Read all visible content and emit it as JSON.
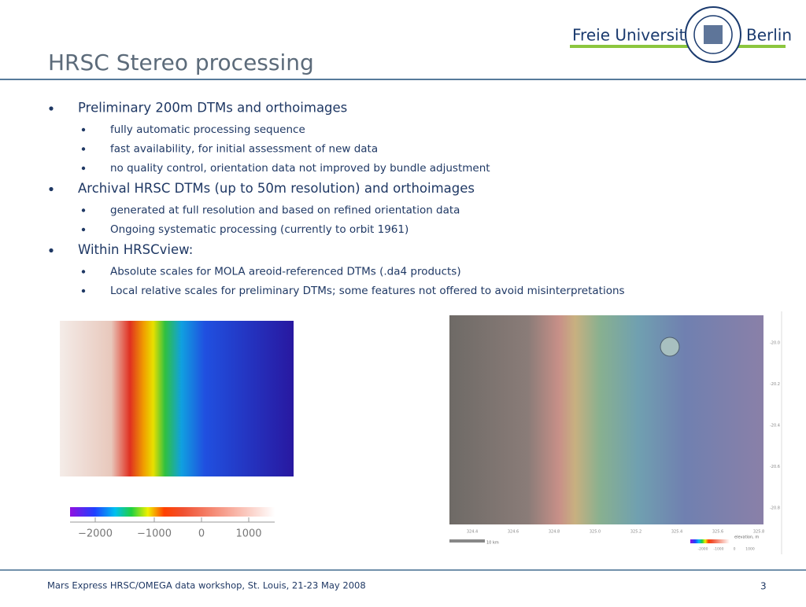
{
  "header": {
    "logo_name": "Freie Universität",
    "logo_city": "Berlin",
    "title": "HRSC Stereo processing"
  },
  "bullets": [
    {
      "text": "Preliminary 200m DTMs and orthoimages",
      "sub": [
        "fully automatic processing sequence",
        "fast availability, for initial assessment of new data",
        "no quality control, orientation data not improved by bundle adjustment"
      ]
    },
    {
      "text": "Archival HRSC DTMs (up to 50m resolution) and orthoimages",
      "sub": [
        "generated at full resolution and based on refined orientation data",
        "Ongoing systematic processing (currently to orbit 1961)"
      ]
    },
    {
      "text": "Within HRSCview:",
      "sub": [
        "Absolute scales for MOLA areoid-referenced DTMs (.da4 products)",
        "Local relative scales for preliminary DTMs; some features not offered to avoid misinterpretations"
      ]
    }
  ],
  "left_figure": {
    "colorbar_labels": [
      "−2000",
      "−1000",
      "0",
      "1000"
    ]
  },
  "right_figure": {
    "y_labels": [
      "-20.0",
      "-20.2",
      "-20.4",
      "-20.6",
      "-20.8"
    ],
    "x_labels": [
      "324.4",
      "324.6",
      "324.8",
      "325.0",
      "325.2",
      "325.4",
      "325.6",
      "325.8"
    ],
    "scale_label": "10 km",
    "legend_title": "elevation, m",
    "legend_labels": [
      "-2000",
      "-1000",
      "0",
      "1000"
    ]
  },
  "footer": {
    "text": "Mars Express HRSC/OMEGA data workshop, St. Louis, 21-23 May 2008",
    "page": "3"
  }
}
